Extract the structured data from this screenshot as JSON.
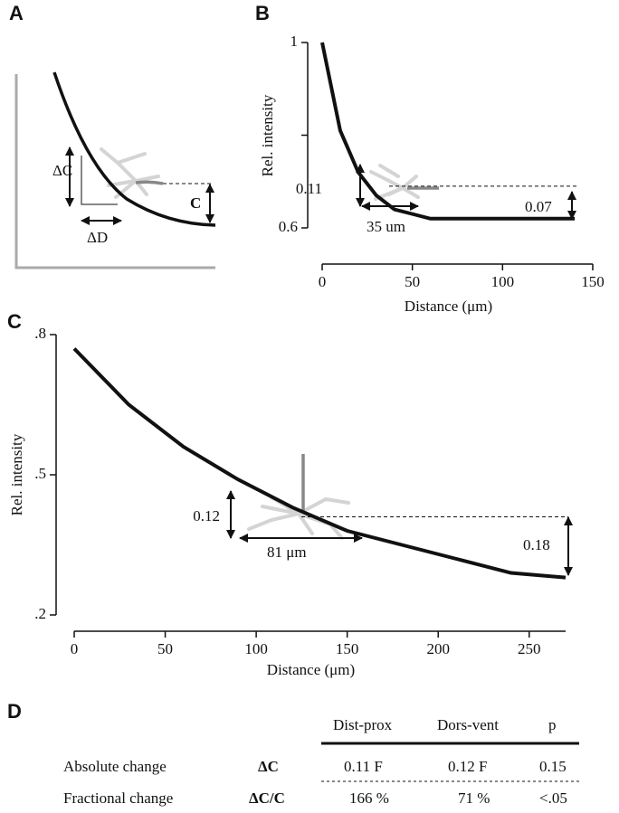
{
  "figure": {
    "panel_labels": [
      "A",
      "B",
      "C",
      "D"
    ],
    "schematic": {
      "delta_c": "ΔC",
      "c": "C",
      "delta_d": "ΔD"
    },
    "table": {
      "header": [
        "Dist-prox",
        "Dors-vent",
        "p"
      ],
      "rows": [
        [
          "Absolute change",
          "ΔC",
          "0.11 F",
          "0.12 F",
          "0.15"
        ],
        [
          "Fractional change",
          "ΔC/C",
          "166 %",
          "71 %",
          "<.05"
        ]
      ]
    }
  },
  "chart_data": [
    {
      "type": "line",
      "ylabel": "Rel. intensity",
      "xlabel": "Distance (μm)",
      "x": [
        0,
        10,
        20,
        30,
        40,
        50,
        60,
        70,
        80,
        90,
        100,
        110,
        120,
        130,
        140
      ],
      "series": [
        {
          "color": "#111111",
          "values": [
            1.0,
            0.81,
            0.72,
            0.67,
            0.64,
            0.63,
            0.62,
            0.62,
            0.62,
            0.62,
            0.62,
            0.62,
            0.62,
            0.62,
            0.62
          ]
        }
      ],
      "xlim": [
        0,
        150
      ],
      "ylim": [
        0.6,
        1
      ],
      "xticks": [
        0,
        50,
        100,
        150
      ],
      "yticks": [
        0.6,
        1
      ],
      "yminor_ticks": [
        0.8
      ],
      "reference_y": 0.69,
      "annotations": [
        "0.11",
        "35 um",
        "0.07"
      ]
    },
    {
      "type": "line",
      "ylabel": "Rel. intensity",
      "xlabel": "Distance (μm)",
      "x": [
        0,
        30,
        60,
        90,
        120,
        150,
        180,
        210,
        240,
        270
      ],
      "series": [
        {
          "color": "#111111",
          "values": [
            0.77,
            0.65,
            0.56,
            0.49,
            0.43,
            0.38,
            0.35,
            0.32,
            0.29,
            0.28
          ]
        }
      ],
      "xlim": [
        0,
        270
      ],
      "ylim": [
        0.2,
        0.8
      ],
      "xticks": [
        0,
        50,
        100,
        150,
        200,
        250
      ],
      "yticks": [
        {
          "value": 0.2,
          "label": ".2"
        },
        {
          "value": 0.5,
          "label": ".5"
        },
        {
          "value": 0.8,
          "label": ".8"
        }
      ],
      "reference_y": 0.41,
      "annotations": [
        "0.12",
        "81 μm",
        "0.18"
      ]
    }
  ]
}
